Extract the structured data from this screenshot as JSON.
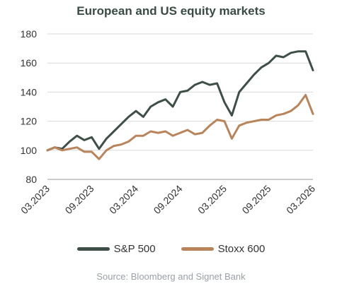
{
  "chart_data": {
    "type": "line",
    "title": "European and US equity markets",
    "source": "Source: Bloomberg and Signet Bank",
    "x_tick_labels": [
      "03.2023",
      "09.2023",
      "03.2024",
      "09.2024",
      "03.2025",
      "09.2025",
      "03.2026"
    ],
    "y_ticks": [
      80,
      100,
      120,
      140,
      160,
      180
    ],
    "ylim": [
      80,
      180
    ],
    "xlim": [
      "2023-03",
      "2026-03"
    ],
    "grid": "horizontal",
    "legend_position": "bottom",
    "series": [
      {
        "name": "S&P 500",
        "color": "#3d4f47",
        "points": [
          [
            "2023-03",
            100
          ],
          [
            "2023-04",
            102
          ],
          [
            "2023-05",
            101
          ],
          [
            "2023-06",
            106
          ],
          [
            "2023-07",
            110
          ],
          [
            "2023-08",
            107
          ],
          [
            "2023-09",
            109
          ],
          [
            "2023-10",
            101
          ],
          [
            "2023-11",
            108
          ],
          [
            "2023-12",
            113
          ],
          [
            "2024-01",
            118
          ],
          [
            "2024-02",
            123
          ],
          [
            "2024-03",
            127
          ],
          [
            "2024-04",
            123
          ],
          [
            "2024-05",
            130
          ],
          [
            "2024-06",
            133
          ],
          [
            "2024-07",
            135
          ],
          [
            "2024-08",
            130
          ],
          [
            "2024-09",
            140
          ],
          [
            "2024-10",
            141
          ],
          [
            "2024-11",
            145
          ],
          [
            "2024-12",
            147
          ],
          [
            "2025-01",
            145
          ],
          [
            "2025-02",
            146
          ],
          [
            "2025-03",
            133
          ],
          [
            "2025-04",
            124
          ],
          [
            "2025-05",
            140
          ],
          [
            "2025-06",
            146
          ],
          [
            "2025-07",
            152
          ],
          [
            "2025-08",
            157
          ],
          [
            "2025-09",
            160
          ],
          [
            "2025-10",
            165
          ],
          [
            "2025-11",
            164
          ],
          [
            "2025-12",
            167
          ],
          [
            "2026-01",
            168
          ],
          [
            "2026-02",
            168
          ],
          [
            "2026-03",
            155
          ]
        ]
      },
      {
        "name": "Stoxx 600",
        "color": "#b9845a",
        "points": [
          [
            "2023-03",
            100
          ],
          [
            "2023-04",
            102
          ],
          [
            "2023-05",
            100
          ],
          [
            "2023-06",
            101
          ],
          [
            "2023-07",
            102
          ],
          [
            "2023-08",
            99
          ],
          [
            "2023-09",
            99
          ],
          [
            "2023-10",
            94
          ],
          [
            "2023-11",
            100
          ],
          [
            "2023-12",
            103
          ],
          [
            "2024-01",
            104
          ],
          [
            "2024-02",
            106
          ],
          [
            "2024-03",
            110
          ],
          [
            "2024-04",
            110
          ],
          [
            "2024-05",
            113
          ],
          [
            "2024-06",
            112
          ],
          [
            "2024-07",
            113
          ],
          [
            "2024-08",
            110
          ],
          [
            "2024-09",
            112
          ],
          [
            "2024-10",
            114
          ],
          [
            "2024-11",
            111
          ],
          [
            "2024-12",
            112
          ],
          [
            "2025-01",
            117
          ],
          [
            "2025-02",
            121
          ],
          [
            "2025-03",
            120
          ],
          [
            "2025-04",
            108
          ],
          [
            "2025-05",
            117
          ],
          [
            "2025-06",
            119
          ],
          [
            "2025-07",
            120
          ],
          [
            "2025-08",
            121
          ],
          [
            "2025-09",
            121
          ],
          [
            "2025-10",
            124
          ],
          [
            "2025-11",
            125
          ],
          [
            "2025-12",
            127
          ],
          [
            "2026-01",
            131
          ],
          [
            "2026-02",
            138
          ],
          [
            "2026-03",
            125
          ]
        ]
      }
    ]
  }
}
